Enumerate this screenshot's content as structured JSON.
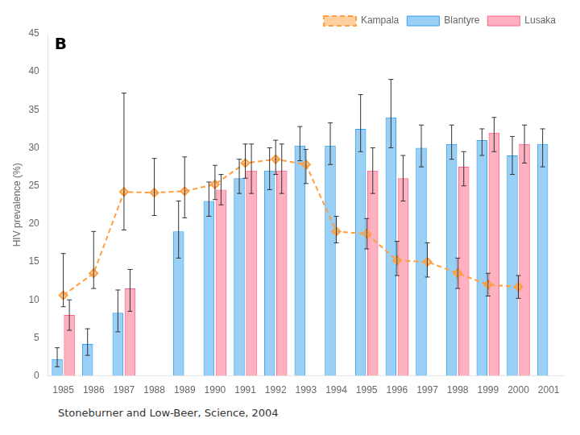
{
  "chart_data": {
    "type": "bar",
    "categories": [
      1985,
      1986,
      1987,
      1988,
      1989,
      1990,
      1991,
      1992,
      1993,
      1994,
      1995,
      1996,
      1997,
      1998,
      1999,
      2000,
      2001
    ],
    "ylabel": "HIV prevalence (%)",
    "ylim": [
      0,
      45
    ],
    "yticks": [
      0,
      5,
      10,
      15,
      20,
      25,
      30,
      35,
      40,
      45
    ],
    "grid": false,
    "legend": "upper right",
    "annotations": [
      "B",
      "Stoneburner and Low-Beer, Science, 2004"
    ],
    "series": [
      {
        "name": "Blantyre",
        "type": "bar",
        "values": [
          2.2,
          4.2,
          8.3,
          null,
          19.0,
          23.0,
          26.0,
          27.0,
          30.3,
          30.3,
          32.5,
          34.0,
          30.0,
          30.5,
          31.0,
          29.0,
          30.5
        ],
        "err_lo": [
          1.0,
          1.5,
          2.5,
          null,
          3.5,
          2.0,
          2.0,
          2.5,
          2.0,
          2.5,
          3.0,
          4.0,
          2.5,
          2.0,
          2.0,
          2.5,
          3.0
        ],
        "err_hi": [
          1.5,
          2.0,
          3.0,
          null,
          4.0,
          2.5,
          2.5,
          3.0,
          2.5,
          3.0,
          4.5,
          5.0,
          3.0,
          2.5,
          1.5,
          2.5,
          2.0
        ]
      },
      {
        "name": "Lusaka",
        "type": "bar",
        "values": [
          8.0,
          null,
          11.5,
          null,
          null,
          24.5,
          27.0,
          27.0,
          null,
          null,
          27.0,
          26.0,
          null,
          27.5,
          32.0,
          30.5,
          null
        ],
        "err_lo": [
          2.0,
          null,
          3.0,
          null,
          null,
          2.0,
          3.0,
          3.0,
          null,
          null,
          3.0,
          3.0,
          null,
          2.5,
          2.5,
          2.5,
          null
        ],
        "err_hi": [
          2.0,
          null,
          2.5,
          null,
          null,
          2.0,
          3.5,
          3.5,
          null,
          null,
          3.0,
          3.0,
          null,
          2.0,
          2.0,
          2.5,
          null
        ]
      },
      {
        "name": "Kampala",
        "type": "line",
        "line_style": "dashed",
        "marker": "diamond",
        "values": [
          10.6,
          13.5,
          24.2,
          24.1,
          24.3,
          25.2,
          28.0,
          28.5,
          27.8,
          19.0,
          18.7,
          15.2,
          15.0,
          13.5,
          12.0,
          11.7,
          null
        ],
        "err_lo": [
          1.5,
          2.0,
          5.0,
          3.0,
          3.5,
          2.0,
          2.0,
          2.0,
          2.5,
          1.5,
          2.0,
          2.0,
          2.0,
          2.0,
          1.5,
          1.5,
          null
        ],
        "err_hi": [
          5.5,
          5.5,
          13.0,
          4.5,
          4.5,
          2.5,
          2.5,
          2.5,
          2.0,
          2.0,
          2.0,
          2.5,
          2.5,
          2.0,
          1.5,
          1.5,
          null
        ]
      }
    ]
  }
}
